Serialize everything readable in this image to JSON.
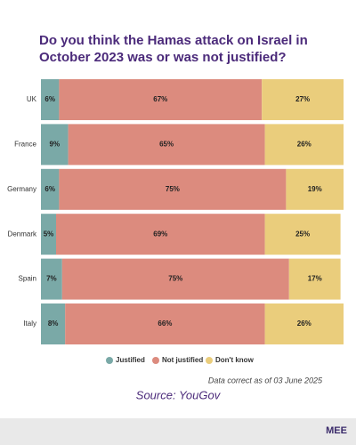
{
  "chart_data": {
    "type": "stacked-bar-horizontal",
    "title": [
      "Do you think the Hamas attack on Israel in",
      "October 2023 was or was not justified?"
    ],
    "categories": [
      "UK",
      "France",
      "Germany",
      "Denmark",
      "Spain",
      "Italy"
    ],
    "series": [
      {
        "name": "Justified",
        "color": "#7aa9a7",
        "values": [
          6,
          9,
          6,
          5,
          7,
          8
        ],
        "value_labels": [
          "6%",
          "9%",
          "6%",
          "5%",
          "7%",
          "8%"
        ]
      },
      {
        "name": "Not justified",
        "color": "#dc8b7e",
        "values": [
          67,
          65,
          75,
          69,
          75,
          66
        ],
        "value_labels": [
          "67%",
          "65%",
          "75%",
          "69%",
          "75%",
          "66%"
        ]
      },
      {
        "name": "Don't know",
        "color": "#eacd7c",
        "values": [
          27,
          26,
          19,
          25,
          17,
          26
        ],
        "value_labels": [
          "27%",
          "26%",
          "19%",
          "25%",
          "17%",
          "26%"
        ]
      }
    ],
    "legend": "bottom",
    "note": "Data correct as of 03 June 2025",
    "source": "Source: YouGov",
    "logo": "MEE"
  }
}
